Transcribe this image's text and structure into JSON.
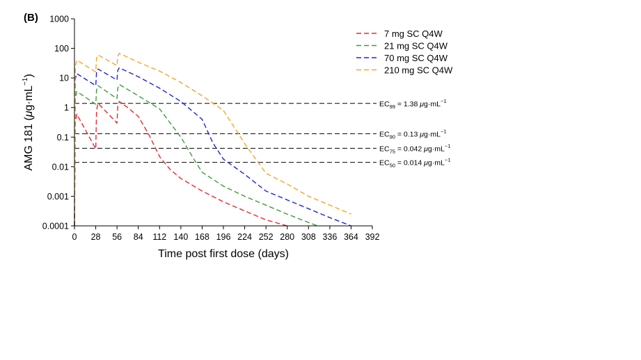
{
  "chart_data": {
    "type": "line",
    "panel_label": "(B)",
    "xlabel": "Time post first dose (days)",
    "ylabel": {
      "main": "AMG 181 (",
      "mu": "μ",
      "unit": "g·mL",
      "sup": "−1",
      "close": ")"
    },
    "xlim": [
      0,
      392
    ],
    "ylim": [
      0.0001,
      1000
    ],
    "y_scale": "log",
    "x_ticks": [
      0,
      28,
      56,
      84,
      112,
      140,
      168,
      196,
      224,
      252,
      280,
      308,
      336,
      364,
      392
    ],
    "y_ticks": [
      {
        "value": 0.0001,
        "label": "0.0001"
      },
      {
        "value": 0.001,
        "label": "0.001"
      },
      {
        "value": 0.01,
        "label": "0.01"
      },
      {
        "value": 0.1,
        "label": "0.1"
      },
      {
        "value": 1,
        "label": "1"
      },
      {
        "value": 10,
        "label": "10"
      },
      {
        "value": 100,
        "label": "100"
      },
      {
        "value": 1000,
        "label": "1000"
      }
    ],
    "legend_position": "top-right",
    "series": [
      {
        "name": "7 mg SC Q4W",
        "color": "#e8262b",
        "x": [
          0,
          1,
          3,
          28,
          29,
          31,
          56,
          57,
          59,
          70,
          84,
          98,
          112,
          126,
          140,
          168,
          196,
          224,
          252,
          280
        ],
        "y": [
          0.0001,
          0.3,
          0.6,
          0.04,
          0.8,
          1.4,
          0.3,
          1.1,
          1.6,
          1.0,
          0.5,
          0.12,
          0.022,
          0.008,
          0.004,
          0.0015,
          0.00065,
          0.00032,
          0.00016,
          0.0001
        ]
      },
      {
        "name": "21 mg SC Q4W",
        "color": "#3b9b3b",
        "x": [
          0,
          1,
          3,
          28,
          29,
          31,
          56,
          57,
          59,
          84,
          112,
          140,
          156,
          168,
          196,
          224,
          252,
          280,
          308,
          320
        ],
        "y": [
          0.0001,
          2.0,
          3.5,
          1.3,
          3.8,
          5.5,
          2.0,
          4.5,
          6.0,
          2.5,
          0.9,
          0.1,
          0.02,
          0.0065,
          0.0022,
          0.001,
          0.0005,
          0.00025,
          0.00013,
          0.0001
        ]
      },
      {
        "name": "70 mg SC Q4W",
        "color": "#1e22d6",
        "x": [
          0,
          1,
          3,
          28,
          29,
          31,
          56,
          57,
          59,
          84,
          112,
          140,
          168,
          182,
          196,
          224,
          252,
          280,
          308,
          336,
          364
        ],
        "y": [
          0.0001,
          9,
          14,
          5.5,
          15,
          20,
          8.5,
          18,
          22,
          11,
          4.5,
          1.6,
          0.4,
          0.065,
          0.018,
          0.0055,
          0.0015,
          0.00075,
          0.00038,
          0.00019,
          0.0001
        ]
      },
      {
        "name": "210 mg SC Q4W",
        "color": "#f5a623",
        "x": [
          0,
          1,
          3,
          28,
          29,
          31,
          56,
          57,
          59,
          84,
          112,
          140,
          168,
          196,
          224,
          252,
          280,
          308,
          336,
          364
        ],
        "y": [
          0.0001,
          25,
          40,
          16,
          45,
          60,
          26,
          55,
          68,
          34,
          17,
          7,
          2.5,
          0.8,
          0.06,
          0.006,
          0.0026,
          0.001,
          0.0005,
          0.00025
        ]
      }
    ],
    "reference_lines": [
      {
        "value": 1.38,
        "sub": "99",
        "text": " = 1.38 ",
        "unit": "g·mL"
      },
      {
        "value": 0.13,
        "sub": "90",
        "text": " = 0.13 ",
        "unit": "g·mL"
      },
      {
        "value": 0.042,
        "sub": "75",
        "text": " = 0.042 ",
        "unit": "g·mL"
      },
      {
        "value": 0.014,
        "sub": "50",
        "text": " = 0.014 ",
        "unit": "g·mL"
      }
    ],
    "reference_prefix": "EC",
    "mu": "μ",
    "sup": "−1"
  }
}
